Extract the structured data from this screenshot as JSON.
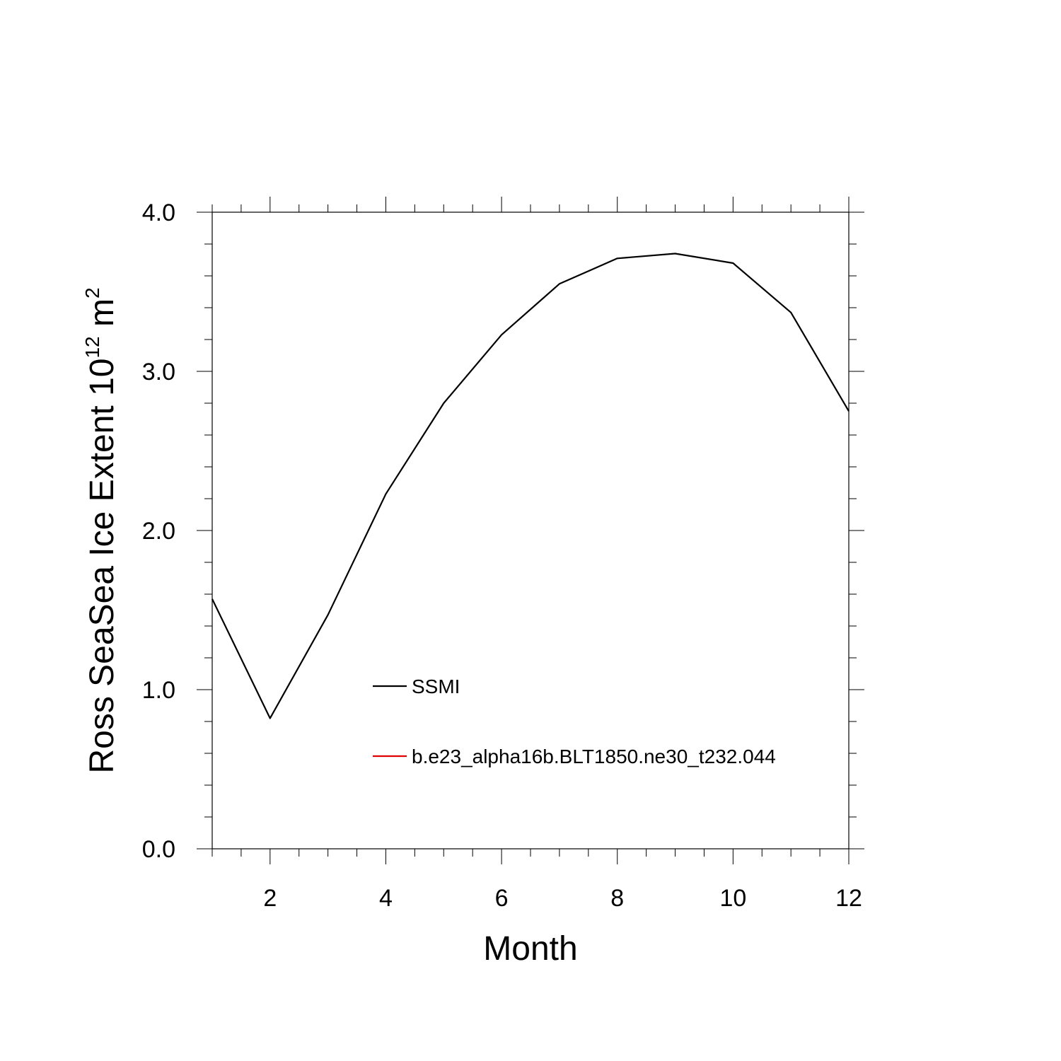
{
  "chart_data": {
    "type": "line",
    "xlabel": "Month",
    "ylabel": {
      "prefix": "Ross SeaSea Ice Extent 10",
      "exponent": "12",
      "unit": " m",
      "unit_exponent": "2"
    },
    "xlim": [
      1,
      12
    ],
    "ylim": [
      0,
      4
    ],
    "x_ticks": [
      2,
      4,
      6,
      8,
      10,
      12
    ],
    "x_tick_labels": [
      "2",
      "4",
      "6",
      "8",
      "10",
      "12"
    ],
    "x_minor_step": 0.5,
    "y_ticks": [
      0,
      1,
      2,
      3,
      4
    ],
    "y_tick_labels": [
      "0.0",
      "1.0",
      "2.0",
      "3.0",
      "4.0"
    ],
    "y_minor_step": 0.2,
    "grid": false,
    "legend_position": "center",
    "series": [
      {
        "name": "SSMI",
        "color": "#000000",
        "x": [
          1,
          2,
          3,
          4,
          5,
          6,
          7,
          8,
          9,
          10,
          11,
          12
        ],
        "values": [
          1.57,
          0.82,
          1.47,
          2.23,
          2.8,
          3.23,
          3.55,
          3.71,
          3.74,
          3.68,
          3.37,
          2.75
        ]
      },
      {
        "name": "b.e23_alpha16b.BLT1850.ne30_t232.044",
        "color": "#e00000",
        "x": [],
        "values": []
      }
    ]
  }
}
